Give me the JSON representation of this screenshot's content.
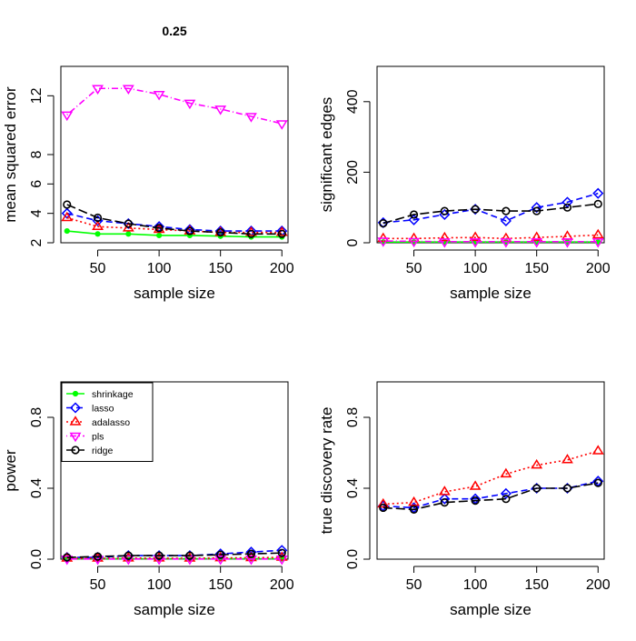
{
  "figure_title": "0.25",
  "chart_data": [
    {
      "type": "line",
      "title": "",
      "xlabel": "sample size",
      "ylabel": "mean squared error",
      "x": [
        25,
        50,
        75,
        100,
        125,
        150,
        175,
        200
      ],
      "xlim": [
        20,
        205
      ],
      "ylim": [
        2,
        14
      ],
      "xticks": [
        50,
        100,
        150,
        200
      ],
      "yticks": [
        2,
        4,
        6,
        8,
        12
      ],
      "series": [
        {
          "name": "shrinkage",
          "color": "#00ff00",
          "marker": "dot",
          "dash": "solid",
          "values": [
            2.8,
            2.6,
            2.6,
            2.5,
            2.5,
            2.45,
            2.4,
            2.4
          ]
        },
        {
          "name": "lasso",
          "color": "#0000ff",
          "marker": "diamond",
          "dash": "dashed",
          "values": [
            4.0,
            3.5,
            3.3,
            3.1,
            2.9,
            2.8,
            2.8,
            2.8
          ]
        },
        {
          "name": "adalasso",
          "color": "#ff0000",
          "marker": "triangle-up",
          "dash": "dotted",
          "values": [
            3.7,
            3.1,
            3.0,
            2.9,
            2.8,
            2.7,
            2.7,
            2.7
          ]
        },
        {
          "name": "pls",
          "color": "#ff00ff",
          "marker": "triangle-down",
          "dash": "dotdash",
          "values": [
            10.7,
            12.5,
            12.5,
            12.1,
            11.5,
            11.1,
            10.6,
            10.1
          ]
        },
        {
          "name": "ridge",
          "color": "#000000",
          "marker": "circle",
          "dash": "longdash",
          "values": [
            4.6,
            3.7,
            3.3,
            3.0,
            2.8,
            2.7,
            2.6,
            2.6
          ]
        }
      ]
    },
    {
      "type": "line",
      "title": "",
      "xlabel": "sample size",
      "ylabel": "significant edges",
      "x": [
        25,
        50,
        75,
        100,
        125,
        150,
        175,
        200
      ],
      "xlim": [
        20,
        205
      ],
      "ylim": [
        0,
        500
      ],
      "xticks": [
        50,
        100,
        150,
        200
      ],
      "yticks": [
        0,
        200,
        400
      ],
      "series": [
        {
          "name": "shrinkage",
          "color": "#00ff00",
          "marker": "dot",
          "dash": "solid",
          "values": [
            2,
            2,
            2,
            2,
            2,
            2,
            2,
            2
          ]
        },
        {
          "name": "lasso",
          "color": "#0000ff",
          "marker": "diamond",
          "dash": "dashed",
          "values": [
            57,
            65,
            80,
            95,
            62,
            100,
            115,
            140
          ]
        },
        {
          "name": "adalasso",
          "color": "#ff0000",
          "marker": "triangle-up",
          "dash": "dotted",
          "values": [
            12,
            12,
            14,
            15,
            12,
            15,
            18,
            22
          ]
        },
        {
          "name": "pls",
          "color": "#ff00ff",
          "marker": "triangle-down",
          "dash": "dotdash",
          "values": [
            5,
            4,
            3,
            3,
            3,
            3,
            3,
            3
          ]
        },
        {
          "name": "ridge",
          "color": "#000000",
          "marker": "circle",
          "dash": "longdash",
          "values": [
            55,
            80,
            90,
            95,
            90,
            90,
            100,
            110
          ]
        }
      ]
    },
    {
      "type": "line",
      "title": "",
      "xlabel": "sample size",
      "ylabel": "power",
      "x": [
        25,
        50,
        75,
        100,
        125,
        150,
        175,
        200
      ],
      "xlim": [
        20,
        205
      ],
      "ylim": [
        0,
        1
      ],
      "xticks": [
        50,
        100,
        150,
        200
      ],
      "yticks": [
        0.0,
        0.4,
        0.8
      ],
      "legend": "top-left",
      "series": [
        {
          "name": "shrinkage",
          "color": "#00ff00",
          "marker": "dot",
          "dash": "solid",
          "values": [
            0.002,
            0.002,
            0.002,
            0.002,
            0.002,
            0.002,
            0.002,
            0.002
          ]
        },
        {
          "name": "lasso",
          "color": "#0000ff",
          "marker": "diamond",
          "dash": "dashed",
          "values": [
            0.01,
            0.01,
            0.02,
            0.02,
            0.02,
            0.03,
            0.04,
            0.05
          ]
        },
        {
          "name": "adalasso",
          "color": "#ff0000",
          "marker": "triangle-up",
          "dash": "dotted",
          "values": [
            0.005,
            0.005,
            0.006,
            0.006,
            0.005,
            0.007,
            0.008,
            0.01
          ]
        },
        {
          "name": "pls",
          "color": "#ff00ff",
          "marker": "triangle-down",
          "dash": "dotdash",
          "values": [
            0.001,
            0.001,
            0.001,
            0.001,
            0.001,
            0.001,
            0.001,
            0.001
          ]
        },
        {
          "name": "ridge",
          "color": "#000000",
          "marker": "circle",
          "dash": "longdash",
          "values": [
            0.01,
            0.015,
            0.02,
            0.02,
            0.02,
            0.025,
            0.03,
            0.035
          ]
        }
      ]
    },
    {
      "type": "line",
      "title": "",
      "xlabel": "sample size",
      "ylabel": "true discovery rate",
      "x": [
        25,
        50,
        75,
        100,
        125,
        150,
        175,
        200
      ],
      "xlim": [
        20,
        205
      ],
      "ylim": [
        0,
        1
      ],
      "xticks": [
        50,
        100,
        150,
        200
      ],
      "yticks": [
        0.0,
        0.4,
        0.8
      ],
      "series": [
        {
          "name": "lasso",
          "color": "#0000ff",
          "marker": "diamond",
          "dash": "dashed",
          "values": [
            0.3,
            0.29,
            0.34,
            0.34,
            0.37,
            0.4,
            0.4,
            0.44
          ]
        },
        {
          "name": "adalasso",
          "color": "#ff0000",
          "marker": "triangle-up",
          "dash": "dotted",
          "values": [
            0.31,
            0.32,
            0.38,
            0.41,
            0.48,
            0.53,
            0.56,
            0.61
          ]
        },
        {
          "name": "ridge",
          "color": "#000000",
          "marker": "circle",
          "dash": "longdash",
          "values": [
            0.29,
            0.28,
            0.32,
            0.33,
            0.34,
            0.4,
            0.4,
            0.43
          ]
        }
      ]
    }
  ]
}
